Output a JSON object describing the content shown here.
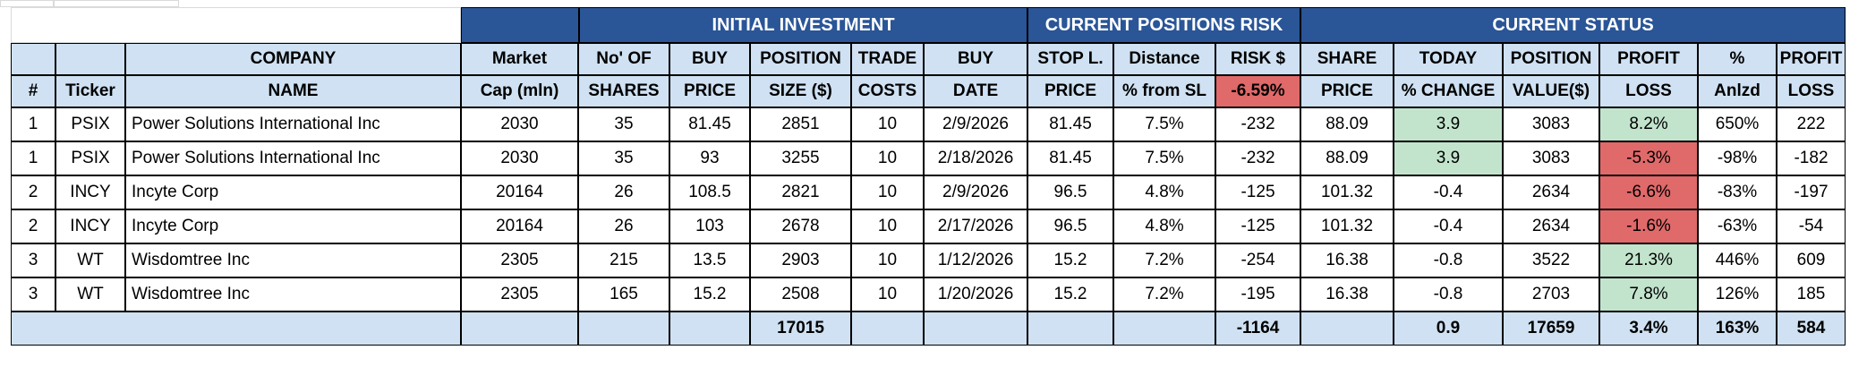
{
  "groups": {
    "initial_investment": "INITIAL INVESTMENT",
    "current_positions_risk": "CURRENT POSITIONS RISK",
    "current_status": "CURRENT STATUS"
  },
  "headers": {
    "num": [
      "",
      "#"
    ],
    "ticker": [
      "",
      "Ticker"
    ],
    "company": [
      "COMPANY",
      "NAME"
    ],
    "market_cap": [
      "Market",
      "Cap (mln)"
    ],
    "shares": [
      "No' OF",
      "SHARES"
    ],
    "buy_price": [
      "BUY",
      "PRICE"
    ],
    "position_size": [
      "POSITION",
      "SIZE ($)"
    ],
    "trade_costs": [
      "TRADE",
      "COSTS"
    ],
    "buy_date": [
      "BUY",
      "DATE"
    ],
    "stop_price": [
      "STOP L.",
      "PRICE"
    ],
    "distance": [
      "Distance",
      "% from SL"
    ],
    "risk": [
      "RISK $",
      "-6.59%"
    ],
    "share_price": [
      "SHARE",
      "PRICE"
    ],
    "today_change": [
      "TODAY",
      "% CHANGE"
    ],
    "position_value": [
      "POSITION",
      "VALUE($)"
    ],
    "profit_pct": [
      "PROFIT",
      "LOSS"
    ],
    "annualized": [
      "%",
      "Anlzd"
    ],
    "profit_abs": [
      "PROFIT",
      "LOSS"
    ]
  },
  "rows": [
    {
      "num": "1",
      "ticker": "PSIX",
      "company": "Power Solutions International Inc",
      "market_cap": "2030",
      "shares": "35",
      "buy_price": "81.45",
      "position_size": "2851",
      "trade_costs": "10",
      "buy_date": "2/9/2026",
      "stop_price": "81.45",
      "distance": "7.5%",
      "risk": "-232",
      "share_price": "88.09",
      "today_change": "3.9",
      "position_value": "3083",
      "profit_pct": "8.2%",
      "annualized": "650%",
      "profit_abs": "222",
      "today_color": "green",
      "profit_color": "green"
    },
    {
      "num": "1",
      "ticker": "PSIX",
      "company": "Power Solutions International Inc",
      "market_cap": "2030",
      "shares": "35",
      "buy_price": "93",
      "position_size": "3255",
      "trade_costs": "10",
      "buy_date": "2/18/2026",
      "stop_price": "81.45",
      "distance": "7.5%",
      "risk": "-232",
      "share_price": "88.09",
      "today_change": "3.9",
      "position_value": "3083",
      "profit_pct": "-5.3%",
      "annualized": "-98%",
      "profit_abs": "-182",
      "today_color": "green",
      "profit_color": "red"
    },
    {
      "num": "2",
      "ticker": "INCY",
      "company": "Incyte Corp",
      "market_cap": "20164",
      "shares": "26",
      "buy_price": "108.5",
      "position_size": "2821",
      "trade_costs": "10",
      "buy_date": "2/9/2026",
      "stop_price": "96.5",
      "distance": "4.8%",
      "risk": "-125",
      "share_price": "101.32",
      "today_change": "-0.4",
      "position_value": "2634",
      "profit_pct": "-6.6%",
      "annualized": "-83%",
      "profit_abs": "-197",
      "today_color": "",
      "profit_color": "red"
    },
    {
      "num": "2",
      "ticker": "INCY",
      "company": "Incyte Corp",
      "market_cap": "20164",
      "shares": "26",
      "buy_price": "103",
      "position_size": "2678",
      "trade_costs": "10",
      "buy_date": "2/17/2026",
      "stop_price": "96.5",
      "distance": "4.8%",
      "risk": "-125",
      "share_price": "101.32",
      "today_change": "-0.4",
      "position_value": "2634",
      "profit_pct": "-1.6%",
      "annualized": "-63%",
      "profit_abs": "-54",
      "today_color": "",
      "profit_color": "red"
    },
    {
      "num": "3",
      "ticker": "WT",
      "company": "Wisdomtree Inc",
      "market_cap": "2305",
      "shares": "215",
      "buy_price": "13.5",
      "position_size": "2903",
      "trade_costs": "10",
      "buy_date": "1/12/2026",
      "stop_price": "15.2",
      "distance": "7.2%",
      "risk": "-254",
      "share_price": "16.38",
      "today_change": "-0.8",
      "position_value": "3522",
      "profit_pct": "21.3%",
      "annualized": "446%",
      "profit_abs": "609",
      "today_color": "",
      "profit_color": "green"
    },
    {
      "num": "3",
      "ticker": "WT",
      "company": "Wisdomtree Inc",
      "market_cap": "2305",
      "shares": "165",
      "buy_price": "15.2",
      "position_size": "2508",
      "trade_costs": "10",
      "buy_date": "1/20/2026",
      "stop_price": "15.2",
      "distance": "7.2%",
      "risk": "-195",
      "share_price": "16.38",
      "today_change": "-0.8",
      "position_value": "2703",
      "profit_pct": "7.8%",
      "annualized": "126%",
      "profit_abs": "185",
      "today_color": "",
      "profit_color": "green"
    }
  ],
  "totals": {
    "position_size": "17015",
    "risk": "-1164",
    "today_change": "0.9",
    "position_value": "17659",
    "profit_pct": "3.4%",
    "annualized": "163%",
    "profit_abs": "584"
  },
  "colors": {
    "group_header": "#2a5597",
    "light_header": "#cfe1f2",
    "negative_fill": "#e0696a",
    "positive_fill": "#c2e4cd"
  }
}
